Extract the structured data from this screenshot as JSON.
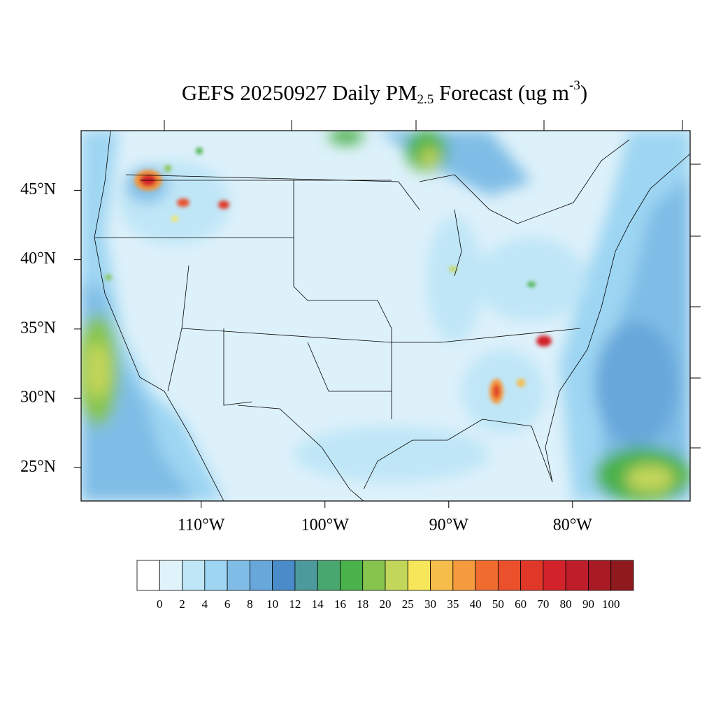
{
  "chart_data": {
    "type": "contour-map",
    "title": {
      "main": "GEFS 20250927 Daily PM",
      "sub": "2.5",
      "middle": " Forecast (ug m",
      "sup": "-3",
      "end": ")"
    },
    "xlim": [
      -119.7,
      -70.5
    ],
    "ylim": [
      22.6,
      49.3
    ],
    "xticks": [
      {
        "value": -110,
        "label": "110°W"
      },
      {
        "value": -100,
        "label": "100°W"
      },
      {
        "value": -90,
        "label": "90°W"
      },
      {
        "value": -80,
        "label": "80°W"
      }
    ],
    "yticks": [
      {
        "value": 45,
        "label": "45°N"
      },
      {
        "value": 40,
        "label": "40°N"
      },
      {
        "value": 35,
        "label": "35°N"
      },
      {
        "value": 30,
        "label": "30°N"
      },
      {
        "value": 25,
        "label": "25°N"
      }
    ],
    "colorbar": {
      "levels": [
        0,
        2,
        4,
        6,
        8,
        10,
        12,
        14,
        16,
        18,
        20,
        25,
        30,
        35,
        40,
        50,
        60,
        70,
        80,
        90,
        100
      ],
      "colors": [
        "#ffffff",
        "#e0f3fb",
        "#bfe6f7",
        "#9dd5f2",
        "#7fbde6",
        "#67a7da",
        "#4a8bc9",
        "#4d9a9c",
        "#48a66f",
        "#4bb14b",
        "#86c44e",
        "#c2d65a",
        "#f7e55a",
        "#f7bd4a",
        "#f59a3d",
        "#f06c2e",
        "#e9502b",
        "#e03828",
        "#d2232b",
        "#be1e2a",
        "#a81b25",
        "#8f1a1d"
      ]
    }
  }
}
